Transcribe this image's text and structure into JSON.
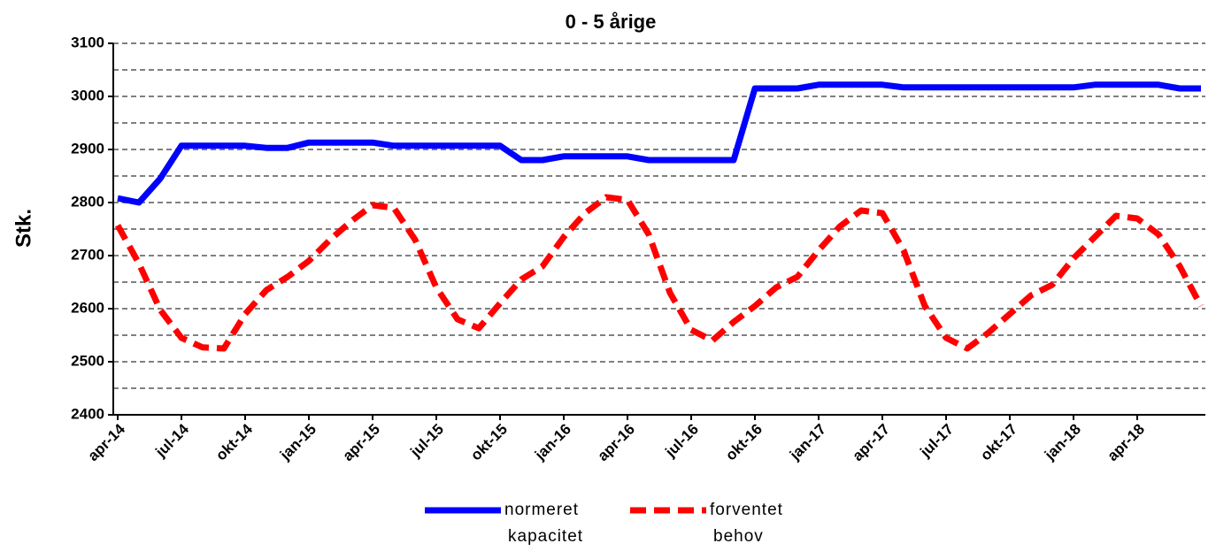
{
  "chart_data": {
    "type": "line",
    "title": "0 - 5 årige",
    "y_label": "Stk.",
    "categories": [
      "apr-14",
      null,
      null,
      "jul-14",
      null,
      null,
      "okt-14",
      null,
      null,
      "jan-15",
      null,
      null,
      "apr-15",
      null,
      null,
      "jul-15",
      null,
      null,
      "okt-15",
      null,
      null,
      "jan-16",
      null,
      null,
      "apr-16",
      null,
      null,
      "jul-16",
      null,
      null,
      "okt-16",
      null,
      null,
      "jan-17",
      null,
      null,
      "apr-17",
      null,
      null,
      "jul-17",
      null,
      null,
      "okt-17",
      null,
      null,
      "jan-18",
      null,
      null,
      "apr-18",
      null,
      null,
      null
    ],
    "series": [
      {
        "name": "normeret kapacitet",
        "color": "#0000ff",
        "dash": false,
        "values": [
          2808,
          2800,
          2845,
          2907,
          2907,
          2907,
          2907,
          2903,
          2903,
          2913,
          2913,
          2913,
          2913,
          2907,
          2907,
          2907,
          2907,
          2907,
          2907,
          2880,
          2880,
          2887,
          2887,
          2887,
          2887,
          2880,
          2880,
          2880,
          2880,
          2880,
          3015,
          3015,
          3015,
          3022,
          3022,
          3022,
          3022,
          3017,
          3017,
          3017,
          3017,
          3017,
          3017,
          3017,
          3017,
          3017,
          3022,
          3022,
          3022,
          3022,
          3015,
          3015
        ]
      },
      {
        "name": "forventet behov",
        "color": "#ff0000",
        "dash": true,
        "values": [
          2757,
          2685,
          2598,
          2545,
          2527,
          2525,
          2590,
          2635,
          2660,
          2690,
          2730,
          2765,
          2795,
          2790,
          2730,
          2640,
          2580,
          2563,
          2610,
          2655,
          2680,
          2735,
          2780,
          2810,
          2805,
          2740,
          2630,
          2560,
          2540,
          2575,
          2605,
          2640,
          2660,
          2710,
          2755,
          2785,
          2780,
          2710,
          2605,
          2545,
          2525,
          2555,
          2590,
          2625,
          2645,
          2695,
          2735,
          2775,
          2770,
          2740,
          2680,
          2605
        ]
      }
    ],
    "ylim": [
      2400,
      3100
    ],
    "yticks": [
      2400,
      2500,
      2600,
      2700,
      2800,
      2900,
      3000,
      3100
    ],
    "minor_yticks": [
      2450,
      2550,
      2650,
      2750,
      2850,
      2950,
      3050
    ],
    "grid": true,
    "legend": "bottom"
  }
}
